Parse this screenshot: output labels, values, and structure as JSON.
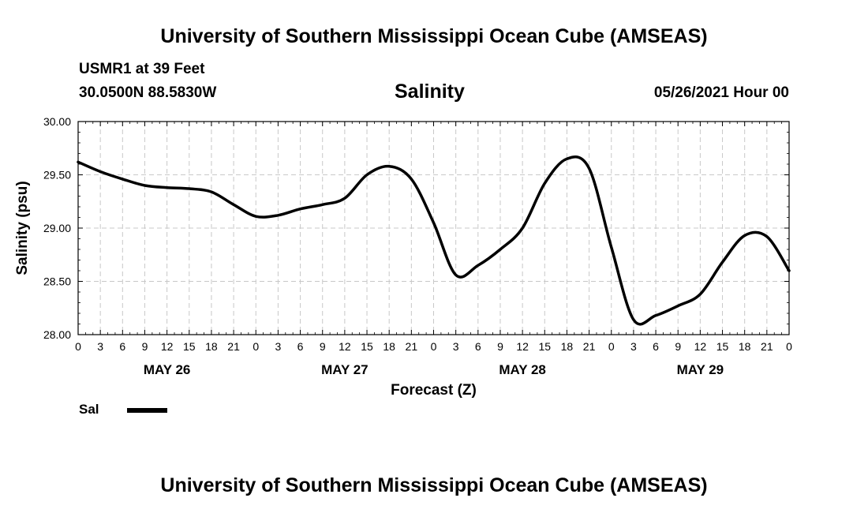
{
  "page": {
    "title_top": "University of Southern Mississippi Ocean Cube (AMSEAS)",
    "title_bottom": "University of Southern Mississippi Ocean Cube (AMSEAS)",
    "station": "USMR1 at 39 Feet",
    "coords": "30.0500N  88.5830W",
    "date": "05/26/2021 Hour 00"
  },
  "chart_data": {
    "type": "line",
    "title": "Salinity",
    "xlabel": "Forecast (Z)",
    "ylabel": "Salinity (psu)",
    "ylim": [
      28.0,
      30.0
    ],
    "xlim": [
      0,
      96
    ],
    "yticks": [
      "28.00",
      "28.50",
      "29.00",
      "29.50",
      "30.00"
    ],
    "ytick_values": [
      28.0,
      28.5,
      29.0,
      29.5,
      30.0
    ],
    "xtick_labels": [
      "0",
      "3",
      "6",
      "9",
      "12",
      "15",
      "18",
      "21",
      "0",
      "3",
      "6",
      "9",
      "12",
      "15",
      "18",
      "21",
      "0",
      "3",
      "6",
      "9",
      "12",
      "15",
      "18",
      "21",
      "0",
      "3",
      "6",
      "9",
      "12",
      "15",
      "18",
      "21",
      "0"
    ],
    "day_labels": [
      {
        "label": "MAY 26",
        "hour": 12
      },
      {
        "label": "MAY 27",
        "hour": 36
      },
      {
        "label": "MAY 28",
        "hour": 60
      },
      {
        "label": "MAY 29",
        "hour": 84
      }
    ],
    "grid": true,
    "legend": "bottom-left",
    "series": [
      {
        "name": "Sal",
        "x": [
          0,
          3,
          6,
          9,
          12,
          15,
          18,
          21,
          24,
          27,
          30,
          33,
          36,
          39,
          42,
          45,
          48,
          51,
          54,
          57,
          60,
          63,
          66,
          69,
          72,
          75,
          78,
          81,
          84,
          87,
          90,
          93,
          96
        ],
        "values": [
          29.62,
          29.53,
          29.46,
          29.4,
          29.38,
          29.37,
          29.34,
          29.22,
          29.11,
          29.12,
          29.18,
          29.22,
          29.28,
          29.5,
          29.58,
          29.46,
          29.05,
          28.56,
          28.65,
          28.8,
          29.0,
          29.42,
          29.65,
          29.56,
          28.82,
          28.14,
          28.18,
          28.27,
          28.38,
          28.68,
          28.93,
          28.92,
          28.6
        ]
      }
    ]
  }
}
